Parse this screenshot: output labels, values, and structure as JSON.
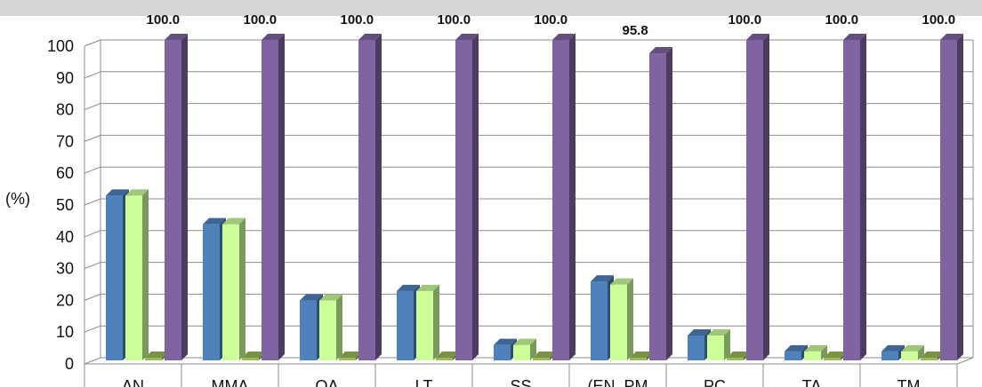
{
  "chart_data": {
    "type": "bar",
    "ylabel": "(%)",
    "ylim": [
      0,
      100
    ],
    "yticks": [
      "0",
      "10",
      "20",
      "30",
      "40",
      "50",
      "60",
      "70",
      "80",
      "90",
      "100"
    ],
    "grid": true,
    "categories": [
      "AN",
      "MMA",
      "OA",
      "LT",
      "SS",
      "(EN, PM",
      "PC",
      "TA",
      "TM"
    ],
    "series": [
      {
        "values": [
          51,
          42,
          18,
          21,
          4,
          24,
          7,
          2,
          2
        ],
        "color": "#4f81bd"
      },
      {
        "values": [
          51,
          42,
          18,
          21,
          4,
          23,
          7,
          2,
          2
        ],
        "color": "#ccff99"
      },
      {
        "values": [
          0,
          0,
          0,
          0,
          0,
          0,
          0,
          0,
          0
        ],
        "color": "#9bbb59"
      },
      {
        "values": [
          100.0,
          100.0,
          100.0,
          100.0,
          100.0,
          95.8,
          100.0,
          100.0,
          100.0
        ],
        "color": "#8064a2"
      }
    ],
    "data_labels": [
      "100.0",
      "100.0",
      "100.0",
      "100.0",
      "100.0",
      "95.8",
      "100.0",
      "100.0",
      "100.0"
    ]
  }
}
